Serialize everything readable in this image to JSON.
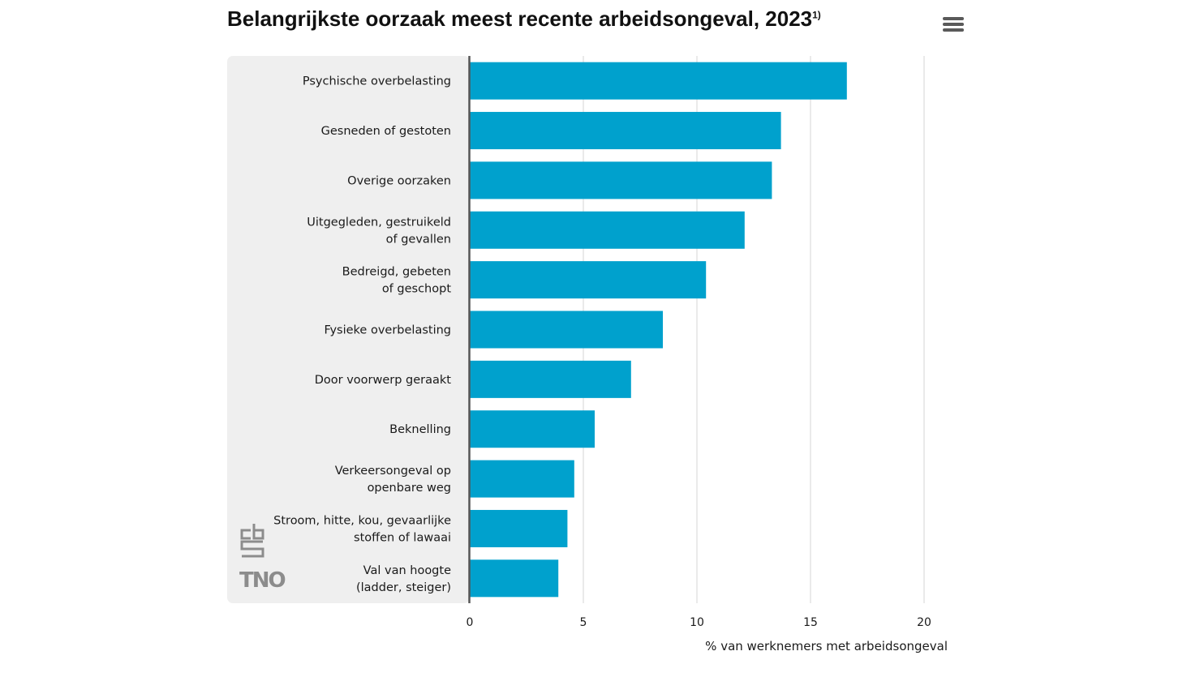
{
  "title": "Belangrijkste oorzaak meest recente arbeidsongeval, 2023",
  "title_footnote": "1)",
  "menu_icon": "hamburger-menu-icon",
  "logos": [
    "cbs",
    "TNO"
  ],
  "colors": {
    "bar": "#00a1cd",
    "panel": "#efefef",
    "grid": "#d6d6d6",
    "axis": "#555555"
  },
  "chart_data": {
    "type": "bar",
    "orientation": "horizontal",
    "title": "Belangrijkste oorzaak meest recente arbeidsongeval, 2023",
    "categories": [
      [
        "Psychische overbelasting"
      ],
      [
        "Gesneden of gestoten"
      ],
      [
        "Overige oorzaken"
      ],
      [
        "Uitgegleden, gestruikeld",
        "of gevallen"
      ],
      [
        "Bedreigd, gebeten",
        "of geschopt"
      ],
      [
        "Fysieke overbelasting"
      ],
      [
        "Door voorwerp geraakt"
      ],
      [
        "Beknelling"
      ],
      [
        "Verkeersongeval op",
        "openbare weg"
      ],
      [
        "Stroom, hitte, kou, gevaarlijke",
        "stoffen of lawaai"
      ],
      [
        "Val van hoogte",
        "(ladder, steiger)"
      ]
    ],
    "values": [
      16.6,
      13.7,
      13.3,
      12.1,
      10.4,
      8.5,
      7.1,
      5.5,
      4.6,
      4.3,
      3.9
    ],
    "xlabel": "% van werknemers met arbeidsongeval",
    "xlim": [
      0,
      20
    ],
    "xticks": [
      0,
      5,
      10,
      15,
      20
    ],
    "grid": true
  }
}
